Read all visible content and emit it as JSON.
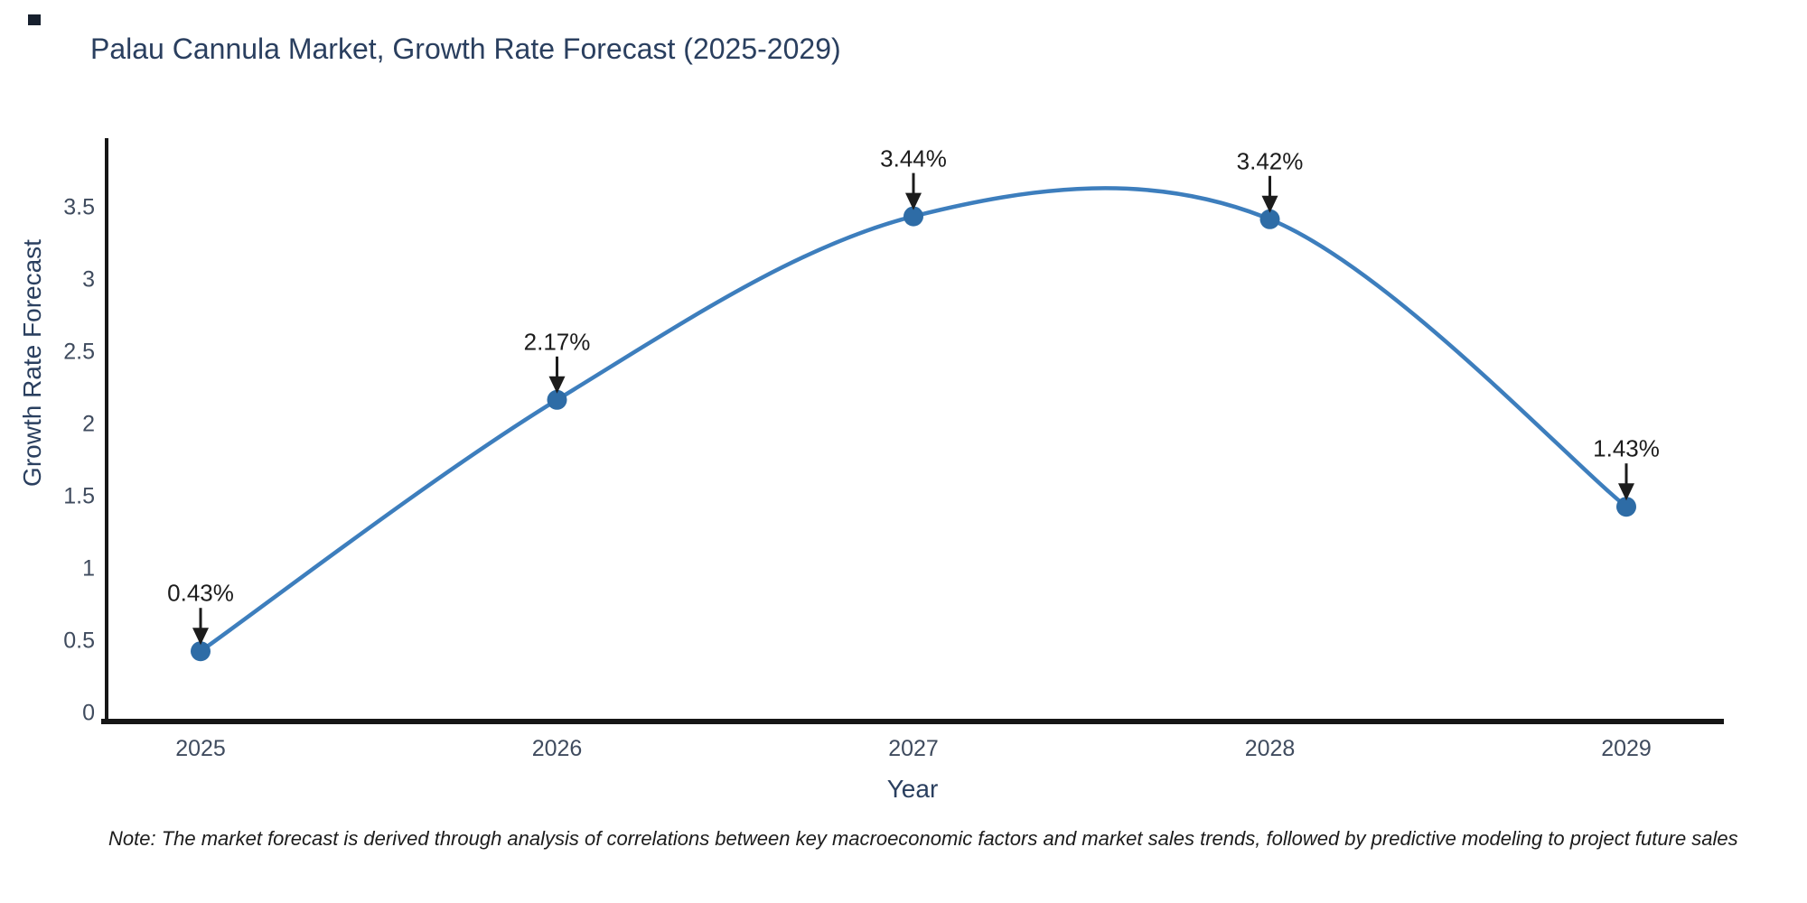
{
  "note": "Note: The market forecast is derived through analysis of correlations between key macroeconomic factors and market sales trends, followed by predictive modeling to project future sales",
  "colors": {
    "line": "#3d7ebd",
    "marker": "#2e6ca6",
    "axis": "#161616",
    "title_text": "#2a3f5f",
    "tick_text": "#3f4b5e",
    "annotation": "#1c1c1c",
    "background": "#ffffff",
    "corner_mark": "#17202e"
  },
  "chart_data": {
    "type": "line",
    "title": "Palau Cannula Market, Growth Rate Forecast (2025-2029)",
    "x": [
      2025,
      2026,
      2027,
      2028,
      2029
    ],
    "values": [
      0.43,
      2.17,
      3.44,
      3.42,
      1.43
    ],
    "point_labels": [
      "0.43%",
      "2.17%",
      "3.44%",
      "3.42%",
      "1.43%"
    ],
    "xlabel": "Year",
    "ylabel": "Growth Rate Forecast",
    "yticks": [
      0,
      0.5,
      1,
      1.5,
      2,
      2.5,
      3,
      3.5
    ],
    "ylim": [
      0,
      4.0
    ],
    "line_shape": "spline",
    "grid": false,
    "legend": false,
    "annotation_arrows": "black-down-arrows"
  }
}
